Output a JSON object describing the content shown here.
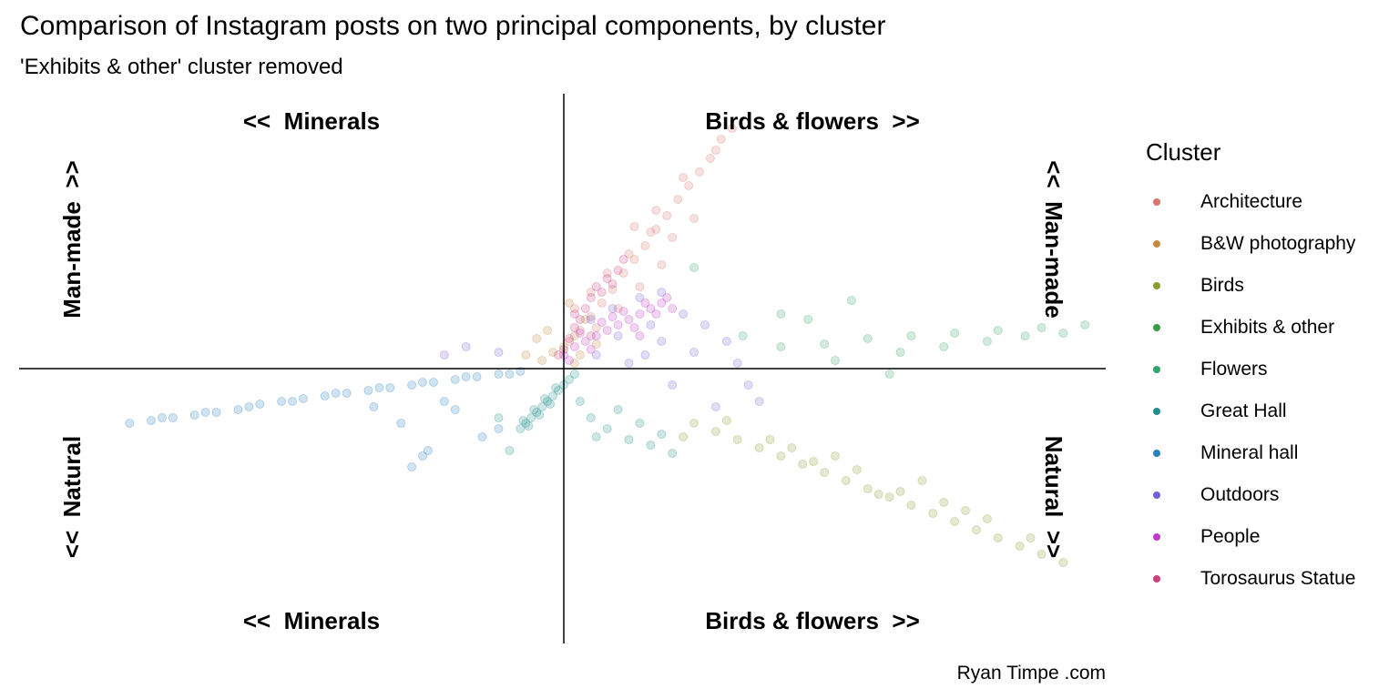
{
  "title": "Comparison of Instagram posts on two principal components, by cluster",
  "subtitle": "'Exhibits & other' cluster removed",
  "caption": "Ryan Timpe .com",
  "quadrant_labels": {
    "top_left": "<<  Minerals",
    "top_right": "Birds & flowers  >>",
    "bottom_left": "<<  Minerals",
    "bottom_right": "Birds & flowers  >>",
    "left_top": "Man-made  >>",
    "left_bottom": "<<  Natural",
    "right_top": "<<  Man-made",
    "right_bottom": "Natural  >>"
  },
  "legend": {
    "title": "Cluster",
    "items": [
      {
        "label": "Architecture",
        "color": "#d8756d"
      },
      {
        "label": "B&W photography",
        "color": "#c58a3f"
      },
      {
        "label": "Birds",
        "color": "#8c9a2e"
      },
      {
        "label": "Exhibits & other",
        "color": "#3b9a45"
      },
      {
        "label": "Flowers",
        "color": "#35a367"
      },
      {
        "label": "Great Hall",
        "color": "#1e8e8c"
      },
      {
        "label": "Mineral hall",
        "color": "#2b7fbf"
      },
      {
        "label": "Outdoors",
        "color": "#7a5ed8"
      },
      {
        "label": "People",
        "color": "#c03bc6"
      },
      {
        "label": "Torosaurus Statue",
        "color": "#c8407e"
      }
    ]
  },
  "chart_data": {
    "type": "scatter",
    "title": "Comparison of Instagram posts on two principal components, by cluster",
    "subtitle": "'Exhibits & other' cluster removed",
    "xlim": [
      -1,
      1
    ],
    "ylim": [
      -1,
      1
    ],
    "grid": false,
    "legend_position": "right",
    "series": [
      {
        "name": "Architecture",
        "points": [
          [
            0.01,
            0.1
          ],
          [
            0.03,
            0.14
          ],
          [
            0.05,
            0.19
          ],
          [
            0.07,
            0.24
          ],
          [
            0.09,
            0.29
          ],
          [
            0.11,
            0.35
          ],
          [
            0.13,
            0.4
          ],
          [
            0.15,
            0.45
          ],
          [
            0.17,
            0.51
          ],
          [
            0.19,
            0.56
          ],
          [
            0.21,
            0.62
          ],
          [
            0.23,
            0.67
          ],
          [
            0.25,
            0.72
          ],
          [
            0.27,
            0.77
          ],
          [
            0.29,
            0.84
          ],
          [
            0.31,
            0.88
          ],
          [
            0.08,
            0.35
          ],
          [
            0.12,
            0.42
          ],
          [
            0.16,
            0.5
          ],
          [
            0.2,
            0.48
          ],
          [
            0.24,
            0.55
          ],
          [
            0.1,
            0.22
          ],
          [
            0.14,
            0.3
          ],
          [
            0.18,
            0.38
          ],
          [
            0.05,
            0.28
          ],
          [
            0.22,
            0.7
          ],
          [
            0.28,
            0.8
          ],
          [
            0.02,
            0.22
          ],
          [
            0.06,
            0.15
          ],
          [
            0.13,
            0.52
          ],
          [
            0.17,
            0.58
          ]
        ]
      },
      {
        "name": "B&W photography",
        "points": [
          [
            0.0,
            0.08
          ],
          [
            -0.02,
            0.06
          ],
          [
            0.02,
            0.12
          ],
          [
            -0.04,
            0.03
          ],
          [
            0.04,
            0.18
          ],
          [
            0.01,
            0.24
          ],
          [
            -0.05,
            0.11
          ],
          [
            0.03,
            0.05
          ],
          [
            -0.03,
            0.14
          ],
          [
            0.06,
            0.09
          ],
          [
            -0.07,
            0.05
          ],
          [
            0.02,
            0.02
          ]
        ]
      },
      {
        "name": "Birds",
        "points": [
          [
            0.24,
            -0.2
          ],
          [
            0.28,
            -0.23
          ],
          [
            0.32,
            -0.26
          ],
          [
            0.36,
            -0.29
          ],
          [
            0.4,
            -0.32
          ],
          [
            0.44,
            -0.35
          ],
          [
            0.48,
            -0.38
          ],
          [
            0.52,
            -0.41
          ],
          [
            0.56,
            -0.44
          ],
          [
            0.6,
            -0.47
          ],
          [
            0.64,
            -0.5
          ],
          [
            0.68,
            -0.53
          ],
          [
            0.72,
            -0.56
          ],
          [
            0.76,
            -0.59
          ],
          [
            0.8,
            -0.62
          ],
          [
            0.84,
            -0.65
          ],
          [
            0.88,
            -0.68
          ],
          [
            0.92,
            -0.71
          ],
          [
            0.3,
            -0.19
          ],
          [
            0.38,
            -0.26
          ],
          [
            0.46,
            -0.34
          ],
          [
            0.54,
            -0.37
          ],
          [
            0.62,
            -0.45
          ],
          [
            0.7,
            -0.49
          ],
          [
            0.78,
            -0.55
          ],
          [
            0.86,
            -0.62
          ],
          [
            0.42,
            -0.29
          ],
          [
            0.58,
            -0.46
          ],
          [
            0.74,
            -0.52
          ],
          [
            0.22,
            -0.25
          ],
          [
            0.5,
            -0.32
          ],
          [
            0.66,
            -0.41
          ]
        ]
      },
      {
        "name": "Flowers",
        "points": [
          [
            0.4,
            0.08
          ],
          [
            0.48,
            0.09
          ],
          [
            0.56,
            0.11
          ],
          [
            0.64,
            0.12
          ],
          [
            0.72,
            0.13
          ],
          [
            0.8,
            0.14
          ],
          [
            0.88,
            0.15
          ],
          [
            0.96,
            0.16
          ],
          [
            0.5,
            0.03
          ],
          [
            0.62,
            0.06
          ],
          [
            0.7,
            0.08
          ],
          [
            0.78,
            0.1
          ],
          [
            0.85,
            0.12
          ],
          [
            0.92,
            0.13
          ],
          [
            0.53,
            0.25
          ],
          [
            0.4,
            0.2
          ],
          [
            0.6,
            -0.02
          ],
          [
            0.24,
            0.37
          ],
          [
            0.45,
            0.18
          ],
          [
            0.33,
            0.12
          ]
        ]
      },
      {
        "name": "Great Hall",
        "points": [
          [
            -0.08,
            -0.22
          ],
          [
            -0.07,
            -0.2
          ],
          [
            -0.06,
            -0.18
          ],
          [
            -0.05,
            -0.16
          ],
          [
            -0.04,
            -0.14
          ],
          [
            -0.03,
            -0.12
          ],
          [
            -0.02,
            -0.1
          ],
          [
            -0.01,
            -0.08
          ],
          [
            0.0,
            -0.06
          ],
          [
            0.01,
            -0.04
          ],
          [
            0.02,
            -0.02
          ],
          [
            -0.075,
            -0.19
          ],
          [
            -0.055,
            -0.15
          ],
          [
            -0.035,
            -0.11
          ],
          [
            -0.015,
            -0.07
          ],
          [
            -0.065,
            -0.21
          ],
          [
            -0.045,
            -0.17
          ],
          [
            -0.025,
            -0.13
          ],
          [
            0.05,
            -0.18
          ],
          [
            0.08,
            -0.22
          ],
          [
            0.12,
            -0.26
          ],
          [
            0.16,
            -0.28
          ],
          [
            0.2,
            -0.31
          ],
          [
            0.03,
            -0.12
          ],
          [
            0.06,
            -0.25
          ],
          [
            0.1,
            -0.15
          ],
          [
            0.14,
            -0.2
          ],
          [
            -0.1,
            -0.3
          ],
          [
            -0.12,
            -0.18
          ],
          [
            0.18,
            -0.24
          ]
        ]
      },
      {
        "name": "Mineral hall",
        "points": [
          [
            -0.8,
            -0.2
          ],
          [
            -0.76,
            -0.19
          ],
          [
            -0.72,
            -0.18
          ],
          [
            -0.68,
            -0.17
          ],
          [
            -0.64,
            -0.16
          ],
          [
            -0.6,
            -0.15
          ],
          [
            -0.56,
            -0.13
          ],
          [
            -0.52,
            -0.12
          ],
          [
            -0.48,
            -0.11
          ],
          [
            -0.44,
            -0.1
          ],
          [
            -0.4,
            -0.09
          ],
          [
            -0.36,
            -0.08
          ],
          [
            -0.32,
            -0.07
          ],
          [
            -0.28,
            -0.06
          ],
          [
            -0.24,
            -0.05
          ],
          [
            -0.2,
            -0.04
          ],
          [
            -0.16,
            -0.03
          ],
          [
            -0.12,
            -0.02
          ],
          [
            -0.08,
            -0.01
          ],
          [
            -0.74,
            -0.18
          ],
          [
            -0.66,
            -0.16
          ],
          [
            -0.58,
            -0.14
          ],
          [
            -0.5,
            -0.12
          ],
          [
            -0.42,
            -0.09
          ],
          [
            -0.34,
            -0.07
          ],
          [
            -0.26,
            -0.05
          ],
          [
            -0.18,
            -0.03
          ],
          [
            -0.1,
            -0.02
          ],
          [
            -0.3,
            -0.2
          ],
          [
            -0.25,
            -0.3
          ],
          [
            -0.2,
            -0.15
          ],
          [
            -0.15,
            -0.25
          ],
          [
            -0.28,
            -0.36
          ],
          [
            -0.26,
            -0.32
          ],
          [
            -0.12,
            -0.22
          ],
          [
            -0.22,
            -0.12
          ],
          [
            -0.35,
            -0.14
          ]
        ]
      },
      {
        "name": "Outdoors",
        "points": [
          [
            0.05,
            0.18
          ],
          [
            0.09,
            0.22
          ],
          [
            0.14,
            0.26
          ],
          [
            0.18,
            0.28
          ],
          [
            0.22,
            0.2
          ],
          [
            0.16,
            0.16
          ],
          [
            0.1,
            0.12
          ],
          [
            0.26,
            0.16
          ],
          [
            0.3,
            0.1
          ],
          [
            0.2,
            -0.06
          ],
          [
            0.28,
            -0.14
          ],
          [
            0.34,
            -0.06
          ],
          [
            0.36,
            -0.12
          ],
          [
            0.15,
            0.05
          ],
          [
            0.24,
            0.06
          ],
          [
            0.12,
            0.02
          ],
          [
            -0.12,
            0.06
          ],
          [
            -0.18,
            0.08
          ],
          [
            -0.22,
            0.05
          ],
          [
            0.06,
            0.05
          ],
          [
            0.32,
            0.02
          ],
          [
            0.18,
            0.1
          ]
        ]
      },
      {
        "name": "People",
        "points": [
          [
            0.0,
            0.05
          ],
          [
            0.02,
            0.08
          ],
          [
            0.04,
            0.1
          ],
          [
            0.06,
            0.12
          ],
          [
            0.08,
            0.14
          ],
          [
            0.1,
            0.16
          ],
          [
            0.12,
            0.18
          ],
          [
            0.14,
            0.2
          ],
          [
            0.16,
            0.22
          ],
          [
            0.18,
            0.24
          ],
          [
            0.03,
            0.13
          ],
          [
            0.07,
            0.17
          ],
          [
            0.11,
            0.21
          ],
          [
            0.15,
            0.24
          ],
          [
            0.19,
            0.26
          ],
          [
            0.13,
            0.15
          ],
          [
            0.09,
            0.19
          ],
          [
            0.05,
            0.07
          ],
          [
            0.17,
            0.2
          ],
          [
            0.01,
            0.03
          ],
          [
            0.2,
            0.22
          ],
          [
            0.14,
            0.12
          ]
        ]
      },
      {
        "name": "Torosaurus Statue",
        "points": [
          [
            0.0,
            0.07
          ],
          [
            0.01,
            0.11
          ],
          [
            0.02,
            0.15
          ],
          [
            0.03,
            0.18
          ],
          [
            0.04,
            0.22
          ],
          [
            0.05,
            0.26
          ],
          [
            0.06,
            0.3
          ],
          [
            0.08,
            0.33
          ],
          [
            0.1,
            0.36
          ],
          [
            0.11,
            0.4
          ],
          [
            0.07,
            0.28
          ],
          [
            0.09,
            0.31
          ],
          [
            -0.01,
            0.05
          ],
          [
            0.02,
            0.2
          ],
          [
            0.05,
            0.12
          ]
        ]
      }
    ]
  }
}
